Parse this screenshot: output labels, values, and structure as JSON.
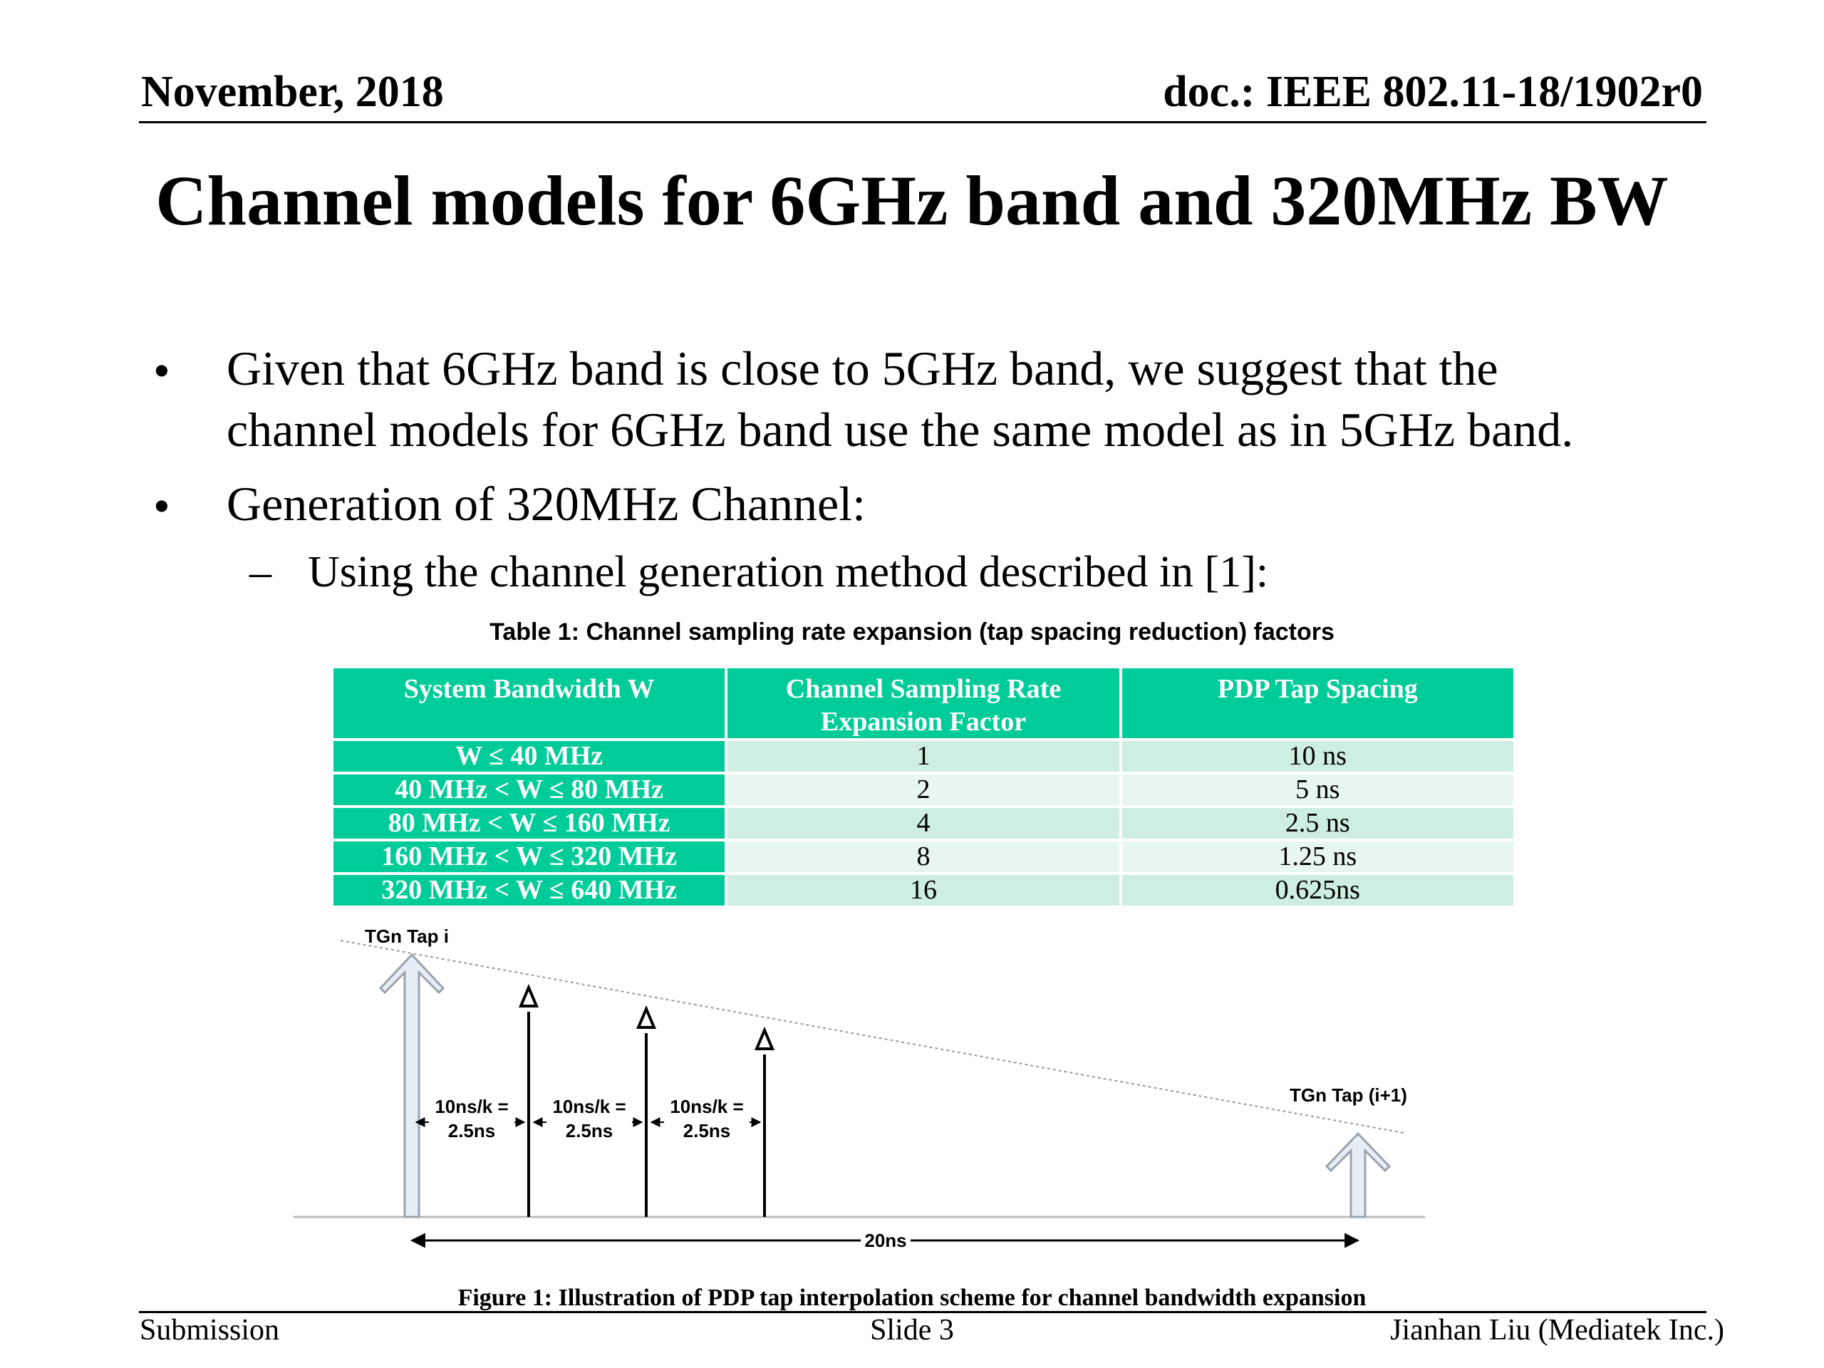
{
  "header": {
    "date": "November, 2018",
    "doc_id": "doc.: IEEE 802.11-18/1902r0"
  },
  "title": "Channel models for 6GHz band and 320MHz BW",
  "bullets": [
    {
      "lines": [
        "Given that 6GHz band is close to 5GHz band, we suggest that the",
        "channel models for 6GHz band use the same model as in 5GHz band."
      ]
    },
    {
      "lines": [
        "Generation of 320MHz Channel:"
      ]
    }
  ],
  "bullet_glyph": "•",
  "sub_bullet": {
    "glyph": "–",
    "text": "Using the channel generation method described in [1]:"
  },
  "table": {
    "caption": "Table 1: Channel sampling rate expansion (tap spacing reduction) factors",
    "headers": [
      "System Bandwidth W",
      "Channel Sampling Rate Expansion Factor",
      "PDP Tap Spacing"
    ],
    "rows": [
      [
        "W ≤ 40 MHz",
        "1",
        "10 ns"
      ],
      [
        "40 MHz < W ≤ 80 MHz",
        "2",
        "5 ns"
      ],
      [
        "80 MHz < W ≤ 160 MHz",
        "4",
        "2.5 ns"
      ],
      [
        "160 MHz < W ≤  320 MHz",
        "8",
        "1.25 ns"
      ],
      [
        "320 MHz < W ≤ 640 MHz",
        "16",
        "0.625ns"
      ]
    ],
    "colors": {
      "header_bg": "#00cc99",
      "row_even": "#cdeee0",
      "row_odd": "#e8f6f0"
    }
  },
  "figure": {
    "tap_i_label": "TGn Tap i",
    "tap_i1_label": "TGn Tap (i+1)",
    "spacing_label_line1": "10ns/k =",
    "spacing_label_line2": "2.5ns",
    "span_label": "20ns",
    "caption": "Figure 1: Illustration of PDP tap interpolation scheme for channel bandwidth expansion"
  },
  "footer": {
    "left": "Submission",
    "center": "Slide 3",
    "right": "Jianhan Liu (Mediatek Inc.)"
  }
}
